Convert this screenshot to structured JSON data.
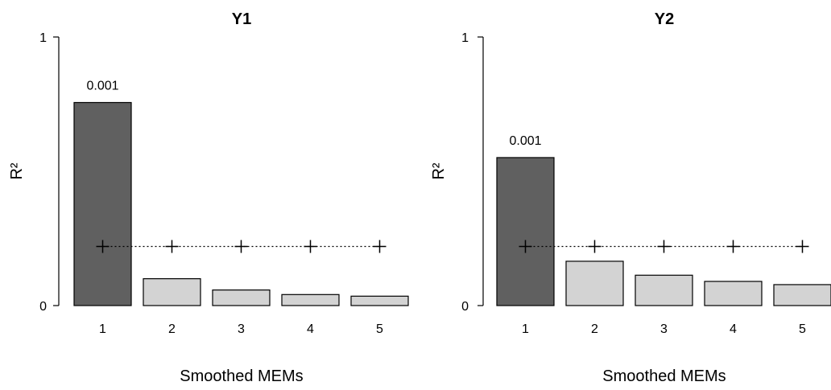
{
  "chart_data": [
    {
      "type": "bar",
      "title": "Y1",
      "xlabel": "Smoothed MEMs",
      "ylabel": "R²",
      "ylim": [
        0,
        1
      ],
      "yticks": [
        "0",
        "1"
      ],
      "categories": [
        "1",
        "2",
        "3",
        "4",
        "5"
      ],
      "values": [
        0.756,
        0.1,
        0.058,
        0.041,
        0.035
      ],
      "highlight": [
        true,
        false,
        false,
        false,
        false
      ],
      "bar_labels": [
        "0.001",
        "",
        "",
        "",
        ""
      ],
      "threshold": [
        0.22,
        0.22,
        0.22,
        0.22,
        0.22
      ],
      "colors": {
        "highlight": "#606060",
        "normal": "#d3d3d3",
        "edge": "#000000"
      }
    },
    {
      "type": "bar",
      "title": "Y2",
      "xlabel": "Smoothed MEMs",
      "ylabel": "R²",
      "ylim": [
        0,
        1
      ],
      "yticks": [
        "0",
        "1"
      ],
      "categories": [
        "1",
        "2",
        "3",
        "4",
        "5"
      ],
      "values": [
        0.551,
        0.165,
        0.113,
        0.09,
        0.078
      ],
      "highlight": [
        true,
        false,
        false,
        false,
        false
      ],
      "bar_labels": [
        "0.001",
        "",
        "",
        "",
        ""
      ],
      "threshold": [
        0.22,
        0.22,
        0.22,
        0.22,
        0.22
      ],
      "colors": {
        "highlight": "#606060",
        "normal": "#d3d3d3",
        "edge": "#000000"
      }
    }
  ]
}
